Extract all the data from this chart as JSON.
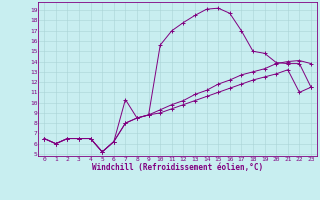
{
  "xlabel": "Windchill (Refroidissement éolien,°C)",
  "background_color": "#c8eef0",
  "grid_color": "#aad4d6",
  "line_color": "#800080",
  "xlim": [
    -0.5,
    23.5
  ],
  "ylim": [
    4.8,
    19.8
  ],
  "xticks": [
    0,
    1,
    2,
    3,
    4,
    5,
    6,
    7,
    8,
    9,
    10,
    11,
    12,
    13,
    14,
    15,
    16,
    17,
    18,
    19,
    20,
    21,
    22,
    23
  ],
  "yticks": [
    5,
    6,
    7,
    8,
    9,
    10,
    11,
    12,
    13,
    14,
    15,
    16,
    17,
    18,
    19
  ],
  "line1_x": [
    0,
    1,
    2,
    3,
    4,
    5,
    6,
    7,
    8,
    9,
    10,
    11,
    12,
    13,
    14,
    15,
    16,
    17,
    18,
    19,
    20,
    21,
    22,
    23
  ],
  "line1_y": [
    6.5,
    6.0,
    6.5,
    6.5,
    6.5,
    5.2,
    6.2,
    10.3,
    8.5,
    8.8,
    15.6,
    17.0,
    17.8,
    18.5,
    19.1,
    19.2,
    18.7,
    17.0,
    15.0,
    14.8,
    13.9,
    13.8,
    13.8,
    11.5
  ],
  "line2_x": [
    0,
    1,
    2,
    3,
    4,
    5,
    6,
    7,
    8,
    9,
    10,
    11,
    12,
    13,
    14,
    15,
    16,
    17,
    18,
    19,
    20,
    21,
    22,
    23
  ],
  "line2_y": [
    6.5,
    6.0,
    6.5,
    6.5,
    6.5,
    5.2,
    6.2,
    8.0,
    8.5,
    8.8,
    9.3,
    9.8,
    10.2,
    10.8,
    11.2,
    11.8,
    12.2,
    12.7,
    13.0,
    13.3,
    13.8,
    14.0,
    14.1,
    13.8
  ],
  "line3_x": [
    0,
    1,
    2,
    3,
    4,
    5,
    6,
    7,
    8,
    9,
    10,
    11,
    12,
    13,
    14,
    15,
    16,
    17,
    18,
    19,
    20,
    21,
    22,
    23
  ],
  "line3_y": [
    6.5,
    6.0,
    6.5,
    6.5,
    6.5,
    5.2,
    6.2,
    8.0,
    8.5,
    8.8,
    9.0,
    9.4,
    9.8,
    10.2,
    10.6,
    11.0,
    11.4,
    11.8,
    12.2,
    12.5,
    12.8,
    13.2,
    11.0,
    11.5
  ],
  "xlabel_fontsize": 5.5,
  "tick_fontsize": 4.5,
  "linewidth": 0.7,
  "markersize": 3.5
}
